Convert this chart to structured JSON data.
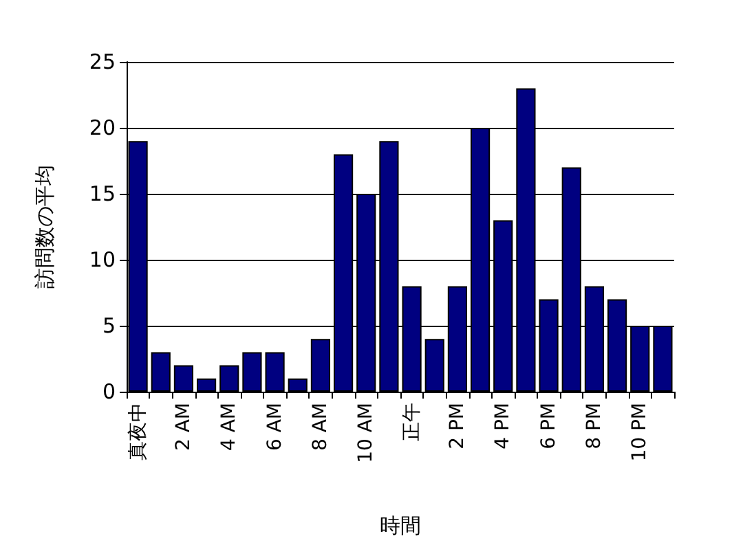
{
  "chart_data": {
    "type": "bar",
    "xlabel": "時間",
    "ylabel": "訪問数の平均",
    "categories": [
      "真夜中",
      null,
      "2 AM",
      null,
      "4 AM",
      null,
      "6 AM",
      null,
      "8 AM",
      null,
      "10 AM",
      null,
      "正午",
      null,
      "2 PM",
      null,
      "4 PM",
      null,
      "6 PM",
      null,
      "8 PM",
      null,
      "10 PM",
      null
    ],
    "values": [
      19,
      3,
      2,
      1,
      2,
      3,
      3,
      1,
      4,
      18,
      15,
      19,
      8,
      4,
      8,
      20,
      13,
      23,
      7,
      17,
      8,
      7,
      5,
      5
    ],
    "color": "#000080",
    "ylim": [
      0,
      25
    ],
    "yticks": [
      0,
      5,
      10,
      15,
      20,
      25
    ],
    "grid": "y"
  }
}
